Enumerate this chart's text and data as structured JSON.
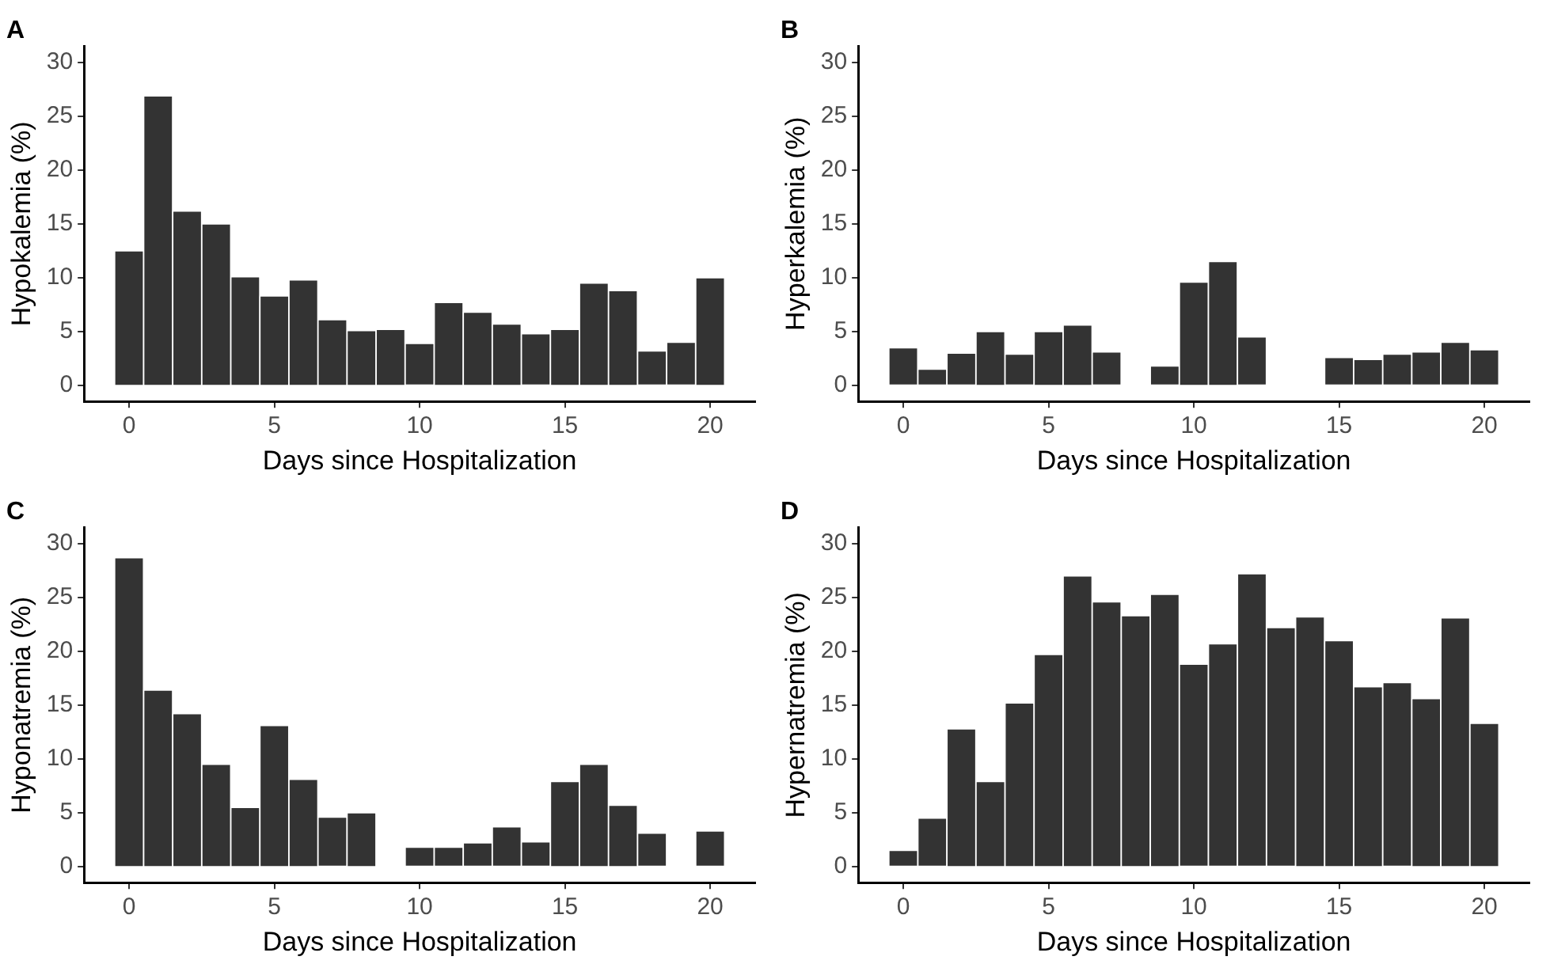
{
  "chart_data": [
    {
      "type": "bar",
      "title": "A",
      "xlabel": "Days since Hospitalization",
      "ylabel": "Hypokalemia (%)",
      "color": "#333333",
      "x": [
        0,
        1,
        2,
        3,
        4,
        5,
        6,
        7,
        8,
        9,
        10,
        11,
        12,
        13,
        14,
        15,
        16,
        17,
        18,
        19,
        20
      ],
      "values": [
        12.5,
        26.9,
        16.2,
        15.0,
        10.1,
        8.3,
        9.8,
        6.1,
        5.1,
        5.2,
        3.9,
        7.7,
        6.8,
        5.7,
        4.8,
        5.2,
        9.5,
        8.8,
        3.2,
        4.0,
        10.0
      ],
      "xlim": [
        -1.55,
        21.55
      ],
      "ylim": [
        -1.5,
        31.5
      ],
      "xticks": [
        0,
        5,
        10,
        15,
        20
      ],
      "yticks": [
        0,
        5,
        10,
        15,
        20,
        25,
        30
      ]
    },
    {
      "type": "bar",
      "title": "B",
      "xlabel": "Days since Hospitalization",
      "ylabel": "Hyperkalemia (%)",
      "color": "#333333",
      "x": [
        0,
        1,
        2,
        3,
        4,
        5,
        6,
        7,
        8,
        9,
        10,
        11,
        12,
        13,
        14,
        15,
        16,
        17,
        18,
        19,
        20
      ],
      "values": [
        3.5,
        1.5,
        3.0,
        5.0,
        2.9,
        5.0,
        5.6,
        3.1,
        null,
        1.8,
        9.6,
        11.5,
        4.5,
        null,
        null,
        2.6,
        2.4,
        2.9,
        3.1,
        4.0,
        3.3
      ],
      "xlim": [
        -1.55,
        21.55
      ],
      "ylim": [
        -1.5,
        31.5
      ],
      "xticks": [
        0,
        5,
        10,
        15,
        20
      ],
      "yticks": [
        0,
        5,
        10,
        15,
        20,
        25,
        30
      ]
    },
    {
      "type": "bar",
      "title": "C",
      "xlabel": "Days since Hospitalization",
      "ylabel": "Hyponatremia (%)",
      "color": "#333333",
      "x": [
        0,
        1,
        2,
        3,
        4,
        5,
        6,
        7,
        8,
        9,
        10,
        11,
        12,
        13,
        14,
        15,
        16,
        17,
        18,
        19,
        20
      ],
      "values": [
        28.7,
        16.4,
        14.2,
        9.5,
        5.5,
        13.1,
        8.1,
        4.6,
        5.0,
        null,
        1.8,
        1.8,
        2.2,
        3.7,
        2.3,
        7.9,
        9.5,
        5.7,
        3.1,
        null,
        3.3
      ],
      "xlim": [
        -1.55,
        21.55
      ],
      "ylim": [
        -1.5,
        31.5
      ],
      "xticks": [
        0,
        5,
        10,
        15,
        20
      ],
      "yticks": [
        0,
        5,
        10,
        15,
        20,
        25,
        30
      ]
    },
    {
      "type": "bar",
      "title": "D",
      "xlabel": "Days since Hospitalization",
      "ylabel": "Hypernatremia (%)",
      "color": "#333333",
      "x": [
        0,
        1,
        2,
        3,
        4,
        5,
        6,
        7,
        8,
        9,
        10,
        11,
        12,
        13,
        14,
        15,
        16,
        17,
        18,
        19,
        20
      ],
      "values": [
        1.5,
        4.5,
        12.8,
        7.9,
        15.2,
        19.7,
        27.0,
        24.6,
        23.3,
        25.3,
        18.8,
        20.7,
        27.2,
        22.2,
        23.2,
        21.0,
        16.7,
        17.1,
        15.6,
        23.1,
        13.3
      ],
      "xlim": [
        -1.55,
        21.55
      ],
      "ylim": [
        -1.5,
        31.5
      ],
      "xticks": [
        0,
        5,
        10,
        15,
        20
      ],
      "yticks": [
        0,
        5,
        10,
        15,
        20,
        25,
        30
      ]
    }
  ]
}
